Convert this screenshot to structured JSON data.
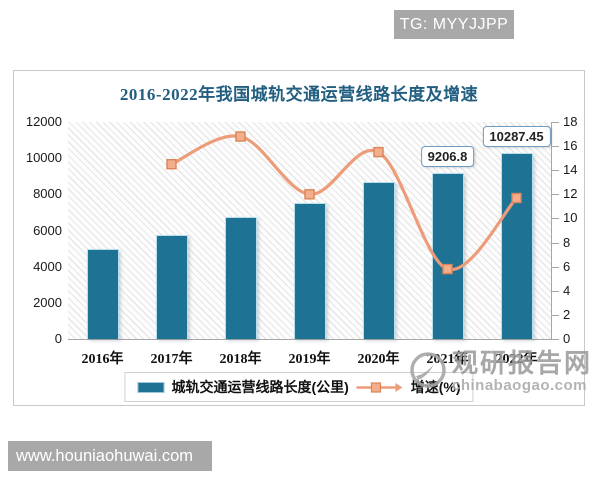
{
  "badges": {
    "telegram": "TG: MYYJJPP",
    "website": "www.houniaohuwai.com"
  },
  "watermark": {
    "brand": "观研报告网",
    "domain": "chinabaogao.com"
  },
  "chart_data": {
    "type": "bar",
    "combo_types": [
      "bar",
      "line"
    ],
    "title": "2016-2022年我国城轨交通运营线路长度及增速",
    "categories": [
      "2016年",
      "2017年",
      "2018年",
      "2019年",
      "2020年",
      "2021年",
      "2022年"
    ],
    "series": [
      {
        "name": "城轨交通运营线路长度(公里)",
        "type": "bar",
        "axis": "left",
        "color": "#1e7294",
        "values": [
          5000,
          5760,
          6730,
          7545,
          8700,
          9206.8,
          10287.45
        ],
        "point_labels": [
          "",
          "",
          "",
          "",
          "",
          "9206.8",
          "10287.45"
        ]
      },
      {
        "name": "增速(%)",
        "type": "line",
        "axis": "right",
        "color": "#ed9c79",
        "marker": "square",
        "values": [
          null,
          14.5,
          16.8,
          12.0,
          15.5,
          5.8,
          11.7
        ]
      }
    ],
    "left_axis": {
      "min": 0,
      "max": 12000,
      "step": 2000
    },
    "right_axis": {
      "min": 0,
      "max": 18,
      "step": 2
    },
    "legend_position": "bottom",
    "plot_background": "diagonal-hatch",
    "gridlines": false
  }
}
